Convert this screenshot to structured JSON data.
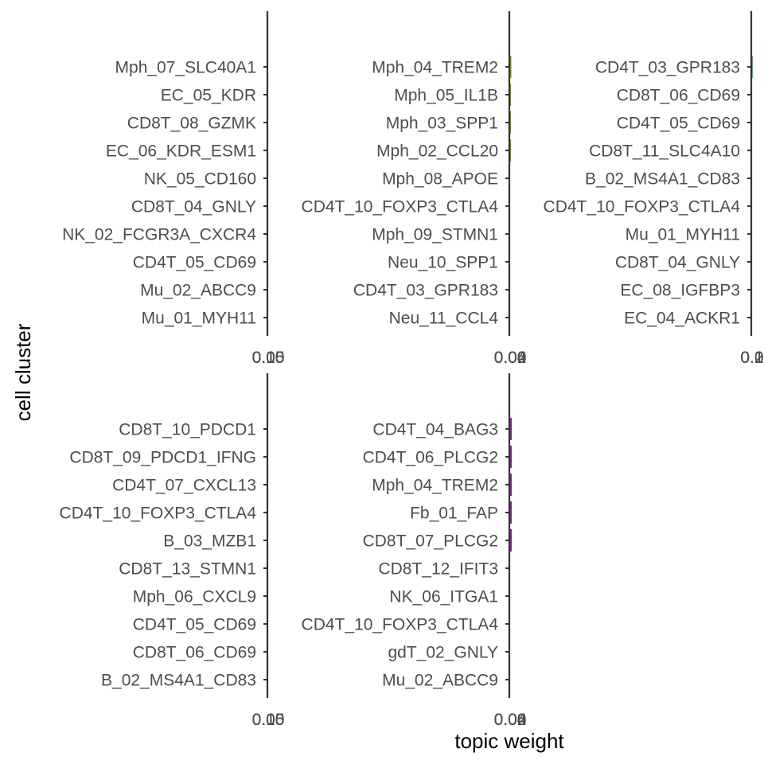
{
  "figure": {
    "xlabel": "topic weight",
    "ylabel": "cell cluster"
  },
  "chart_data": [
    {
      "type": "bar",
      "orientation": "horizontal",
      "color": "#440154",
      "categories": [
        "Mph_07_SLC40A1",
        "EC_05_KDR",
        "CD8T_08_GZMK",
        "EC_06_KDR_ESM1",
        "NK_05_CD160",
        "CD8T_04_GNLY",
        "NK_02_FCGR3A_CXCR4",
        "CD4T_05_CD69",
        "Mu_02_ABCC9",
        "Mu_01_MYH11"
      ],
      "values": [
        0,
        0,
        0,
        0,
        0,
        0,
        0,
        0,
        0,
        0
      ],
      "x_tick_labels": [
        "0.00",
        "0.05",
        "0.10",
        "0.15"
      ]
    },
    {
      "type": "bar",
      "orientation": "horizontal",
      "color": "#8f8a00",
      "categories": [
        "Mph_04_TREM2",
        "Mph_05_IL1B",
        "Mph_03_SPP1",
        "Mph_02_CCL20",
        "Mph_08_APOE",
        "CD4T_10_FOXP3_CTLA4",
        "Mph_09_STMN1",
        "Neu_10_SPP1",
        "CD4T_03_GPR183",
        "Neu_11_CCL4"
      ],
      "values": [
        0.0005,
        0.0004,
        0.0004,
        0.0004,
        0,
        0,
        0,
        0,
        0,
        0
      ],
      "x_tick_labels": [
        "0.00",
        "0.02",
        "0.04",
        "0.06"
      ]
    },
    {
      "type": "bar",
      "orientation": "horizontal",
      "color": "#21908c",
      "categories": [
        "CD4T_03_GPR183",
        "CD8T_06_CD69",
        "CD4T_05_CD69",
        "CD8T_11_SLC4A10",
        "B_02_MS4A1_CD83",
        "CD4T_10_FOXP3_CTLA4",
        "Mu_01_MYH11",
        "CD8T_04_GNLY",
        "EC_08_IGFBP3",
        "EC_04_ACKR1"
      ],
      "values": [
        0.0012,
        0,
        0,
        0,
        0,
        0,
        0,
        0,
        0,
        0
      ],
      "x_tick_labels": [
        "0.0",
        "0.1",
        "0.2"
      ]
    },
    {
      "type": "bar",
      "orientation": "horizontal",
      "color": "#3b528b",
      "categories": [
        "CD8T_10_PDCD1",
        "CD8T_09_PDCD1_IFNG",
        "CD4T_07_CXCL13",
        "CD4T_10_FOXP3_CTLA4",
        "B_03_MZB1",
        "CD8T_13_STMN1",
        "Mph_06_CXCL9",
        "CD4T_05_CD69",
        "CD8T_06_CD69",
        "B_02_MS4A1_CD83"
      ],
      "values": [
        0,
        0,
        0,
        0,
        0,
        0,
        0,
        0,
        0,
        0
      ],
      "x_tick_labels": [
        "0.00",
        "0.05",
        "0.10",
        "0.15"
      ]
    },
    {
      "type": "bar",
      "orientation": "horizontal",
      "color": "#7b2a8a",
      "categories": [
        "CD4T_04_BAG3",
        "CD4T_06_PLCG2",
        "Mph_04_TREM2",
        "Fb_01_FAP",
        "CD8T_07_PLCG2",
        "CD8T_12_IFIT3",
        "NK_06_ITGA1",
        "CD4T_10_FOXP3_CTLA4",
        "gdT_02_GNLY",
        "Mu_02_ABCC9"
      ],
      "values": [
        0.0006,
        0.0006,
        0.0006,
        0.0006,
        0.0006,
        0,
        0,
        0,
        0,
        0
      ],
      "x_tick_labels": [
        "0.00",
        "0.02",
        "0.04",
        "0.06"
      ]
    }
  ]
}
